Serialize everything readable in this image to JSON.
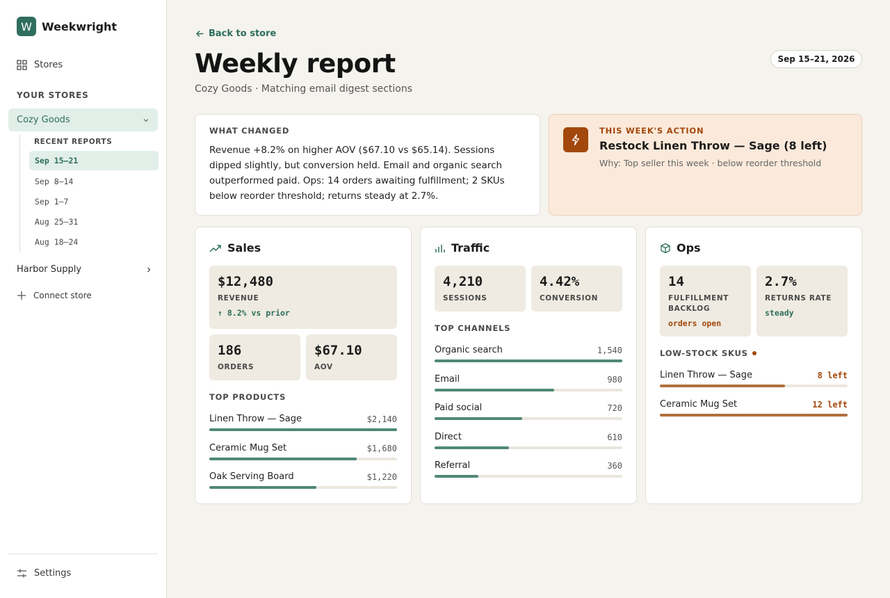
{
  "brand": {
    "logo_letter": "W",
    "name": "Weekwright"
  },
  "sidebar": {
    "stores_label": "Stores",
    "your_stores_label": "YOUR STORES",
    "active_store": "Cozy Goods",
    "recent_reports_label": "RECENT REPORTS",
    "reports": [
      "Sep 15–21",
      "Sep 8–14",
      "Sep 1–7",
      "Aug 25–31",
      "Aug 18–24"
    ],
    "other_store": "Harbor Supply",
    "connect_label": "Connect store",
    "settings_label": "Settings"
  },
  "header": {
    "back_label": "Back to store",
    "title": "Weekly report",
    "subtitle": "Cozy Goods · Matching email digest sections",
    "date_range": "Sep 15–21, 2026"
  },
  "what_changed": {
    "caption": "WHAT CHANGED",
    "text": "Revenue +8.2% on higher AOV ($67.10 vs $65.14). Sessions dipped slightly, but conversion held. Email and organic search outperformed paid. Ops: 14 orders awaiting fulfillment; 2 SKUs below reorder threshold; returns steady at 2.7%."
  },
  "action": {
    "caption": "THIS WEEK'S ACTION",
    "title": "Restock Linen Throw — Sage (8 left)",
    "why": "Why: Top seller this week · below reorder threshold"
  },
  "sales": {
    "title": "Sales",
    "revenue": {
      "value": "$12,480",
      "label": "REVENUE",
      "note": "↑ 8.2% vs prior"
    },
    "orders": {
      "value": "186",
      "label": "ORDERS"
    },
    "aov": {
      "value": "$67.10",
      "label": "AOV"
    },
    "top_products_label": "TOP PRODUCTS",
    "top_products": [
      {
        "name": "Linen Throw — Sage",
        "value": "$2,140",
        "share": 1.0
      },
      {
        "name": "Ceramic Mug Set",
        "value": "$1,680",
        "share": 0.785
      },
      {
        "name": "Oak Serving Board",
        "value": "$1,220",
        "share": 0.57
      }
    ]
  },
  "traffic": {
    "title": "Traffic",
    "sessions": {
      "value": "4,210",
      "label": "SESSIONS"
    },
    "conversion": {
      "value": "4.42%",
      "label": "CONVERSION"
    },
    "top_channels_label": "TOP CHANNELS",
    "channels": [
      {
        "name": "Organic search",
        "value": "1,540",
        "share": 1.0
      },
      {
        "name": "Email",
        "value": "980",
        "share": 0.636
      },
      {
        "name": "Paid social",
        "value": "720",
        "share": 0.468
      },
      {
        "name": "Direct",
        "value": "610",
        "share": 0.396
      },
      {
        "name": "Referral",
        "value": "360",
        "share": 0.234
      }
    ]
  },
  "ops": {
    "title": "Ops",
    "backlog": {
      "value": "14",
      "label": "FULFILLMENT BACKLOG",
      "note": "orders open"
    },
    "returns": {
      "value": "2.7%",
      "label": "RETURNS RATE",
      "note": "steady"
    },
    "low_stock_label": "LOW-STOCK SKUS",
    "low_stock": [
      {
        "name": "Linen Throw — Sage",
        "value": "8 left",
        "share": 0.667
      },
      {
        "name": "Ceramic Mug Set",
        "value": "12 left",
        "share": 1.0
      }
    ]
  },
  "colors": {
    "accent": "#2e6e5c",
    "action": "#a3480c",
    "bar": "#4f8877",
    "low_bar": "#b0703f"
  }
}
